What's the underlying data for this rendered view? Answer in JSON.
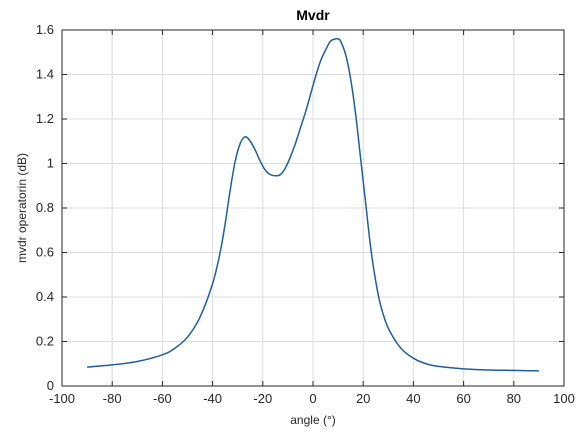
{
  "chart_data": {
    "type": "line",
    "title": "Mvdr",
    "xlabel": "angle (°)",
    "ylabel": "mvdr operatorin (dB)",
    "xlim": [
      -100,
      100
    ],
    "ylim": [
      0,
      1.6
    ],
    "xticks": [
      -100,
      -80,
      -60,
      -40,
      -20,
      0,
      20,
      40,
      60,
      80,
      100
    ],
    "yticks": [
      0,
      0.2,
      0.4,
      0.6,
      0.8,
      1,
      1.2,
      1.4,
      1.6
    ],
    "xtick_labels": [
      "-100",
      "-80",
      "-60",
      "-40",
      "-20",
      "0",
      "20",
      "40",
      "60",
      "80",
      "100"
    ],
    "ytick_labels": [
      "0",
      "0.2",
      "0.4",
      "0.6",
      "0.8",
      "1",
      "1.2",
      "1.4",
      "1.6"
    ],
    "grid": true,
    "line_color": "#1f5f99",
    "series": [
      {
        "x": [
          -90,
          -80,
          -70,
          -60,
          -55,
          -50,
          -45,
          -40,
          -37,
          -35,
          -33,
          -31,
          -29,
          -27,
          -25,
          -23,
          -21,
          -19,
          -17,
          -15,
          -13,
          -11,
          -9,
          -7,
          -5,
          -3,
          -1,
          1,
          3,
          5,
          7,
          9,
          10,
          11,
          13,
          15,
          17,
          19,
          21,
          23,
          25,
          27,
          30,
          35,
          40,
          45,
          50,
          60,
          70,
          80,
          90
        ],
        "y": [
          0.085,
          0.095,
          0.11,
          0.14,
          0.17,
          0.22,
          0.31,
          0.46,
          0.6,
          0.73,
          0.88,
          1.01,
          1.09,
          1.12,
          1.1,
          1.06,
          1.01,
          0.97,
          0.95,
          0.945,
          0.95,
          0.98,
          1.03,
          1.09,
          1.16,
          1.23,
          1.31,
          1.39,
          1.46,
          1.51,
          1.55,
          1.56,
          1.56,
          1.55,
          1.49,
          1.38,
          1.22,
          1.02,
          0.82,
          0.62,
          0.47,
          0.36,
          0.26,
          0.17,
          0.125,
          0.1,
          0.088,
          0.077,
          0.072,
          0.07,
          0.068
        ]
      }
    ]
  }
}
